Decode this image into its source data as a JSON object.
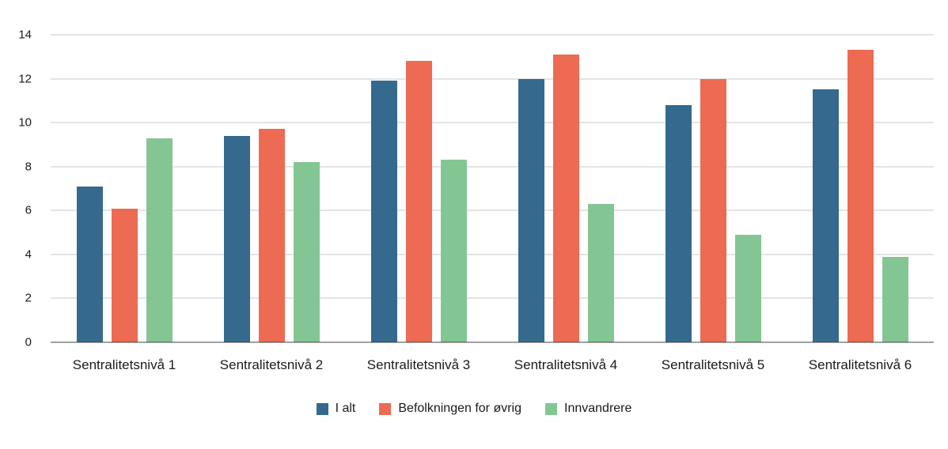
{
  "chart_data": {
    "type": "bar",
    "title": "",
    "xlabel": "",
    "ylabel": "",
    "categories": [
      "Sentralitetsnivå 1",
      "Sentralitetsnivå 2",
      "Sentralitetsnivå 3",
      "Sentralitetsnivå 4",
      "Sentralitetsnivå 5",
      "Sentralitetsnivå 6"
    ],
    "series": [
      {
        "name": "I alt",
        "color": "#35698E",
        "values": [
          7.1,
          9.4,
          11.9,
          12.0,
          10.8,
          11.5
        ]
      },
      {
        "name": "Befolkningen for øvrig",
        "color": "#EC6B52",
        "values": [
          6.1,
          9.7,
          12.8,
          13.1,
          12.0,
          13.3
        ]
      },
      {
        "name": "Innvandrere",
        "color": "#83C694",
        "values": [
          9.3,
          8.2,
          8.3,
          6.3,
          4.9,
          3.9
        ]
      }
    ],
    "ylim": [
      0,
      14
    ],
    "yticks": [
      0,
      2,
      4,
      6,
      8,
      10,
      12,
      14
    ],
    "grid": true,
    "grid_color": "#c8c8c8",
    "axis_color": "#404040",
    "text_color": "#1a1a1a",
    "legend_position": "bottom"
  }
}
